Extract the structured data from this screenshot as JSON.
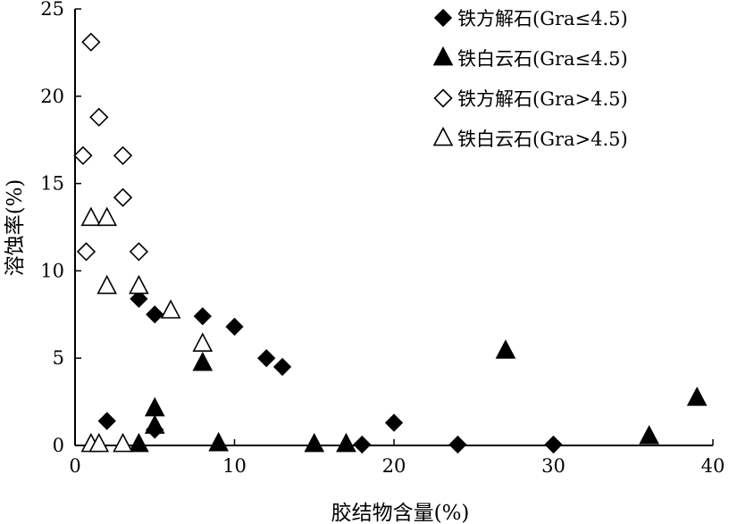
{
  "chart_data": {
    "type": "scatter",
    "xlabel": "胶结物含量(%)",
    "ylabel": "溶蚀率(%)",
    "xlim": [
      0,
      40
    ],
    "ylim": [
      0,
      25
    ],
    "xticks": [
      0,
      10,
      20,
      30,
      40
    ],
    "yticks": [
      0,
      5,
      10,
      15,
      20,
      25
    ],
    "grid": false,
    "legend_position": "top-right",
    "series": [
      {
        "name": "铁方解石(Gra≤4.5)",
        "marker": "diamond-filled",
        "points": [
          [
            2,
            1.4
          ],
          [
            4,
            8.4
          ],
          [
            5,
            7.5
          ],
          [
            5,
            0.9
          ],
          [
            8,
            7.4
          ],
          [
            10,
            6.8
          ],
          [
            12,
            5.0
          ],
          [
            13,
            4.5
          ],
          [
            18,
            0.05
          ],
          [
            20,
            1.3
          ],
          [
            24,
            0.05
          ],
          [
            30,
            0.05
          ]
        ]
      },
      {
        "name": "铁白云石(Gra≤4.5)",
        "marker": "triangle-filled",
        "points": [
          [
            4,
            0.05
          ],
          [
            5,
            1.1
          ],
          [
            5,
            2.1
          ],
          [
            8,
            4.7
          ],
          [
            9,
            0.1
          ],
          [
            15,
            0.05
          ],
          [
            17,
            0.05
          ],
          [
            27,
            5.4
          ],
          [
            36,
            0.5
          ],
          [
            39,
            2.7
          ]
        ]
      },
      {
        "name": "铁方解石(Gra>4.5)",
        "marker": "diamond-open",
        "points": [
          [
            0.5,
            16.6
          ],
          [
            0.7,
            11.1
          ],
          [
            1,
            23.1
          ],
          [
            1.5,
            18.8
          ],
          [
            3,
            16.6
          ],
          [
            3,
            14.2
          ],
          [
            4,
            11.1
          ]
        ]
      },
      {
        "name": "铁白云石(Gra>4.5)",
        "marker": "triangle-open",
        "points": [
          [
            1,
            0.05
          ],
          [
            1,
            13.0
          ],
          [
            1.5,
            0.05
          ],
          [
            2,
            13.0
          ],
          [
            2,
            9.1
          ],
          [
            3,
            0.05
          ],
          [
            4,
            9.1
          ],
          [
            6,
            7.7
          ],
          [
            8,
            5.8
          ]
        ]
      }
    ]
  }
}
